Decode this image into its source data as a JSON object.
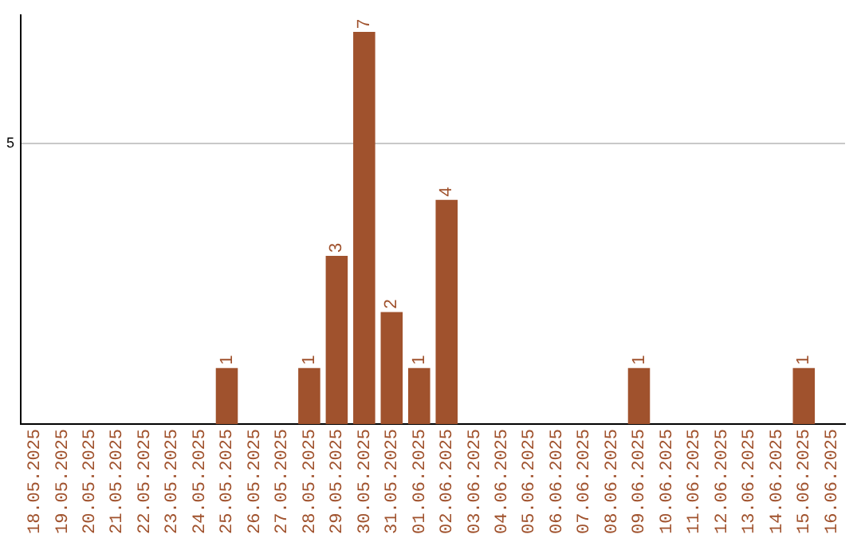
{
  "chart_data": {
    "type": "bar",
    "categories": [
      "18.05.2025",
      "19.05.2025",
      "20.05.2025",
      "21.05.2025",
      "22.05.2025",
      "23.05.2025",
      "24.05.2025",
      "25.05.2025",
      "26.05.2025",
      "27.05.2025",
      "28.05.2025",
      "29.05.2025",
      "30.05.2025",
      "31.05.2025",
      "01.06.2025",
      "02.06.2025",
      "03.06.2025",
      "04.06.2025",
      "05.06.2025",
      "06.06.2025",
      "07.06.2025",
      "08.06.2025",
      "09.06.2025",
      "10.06.2025",
      "11.06.2025",
      "12.06.2025",
      "13.06.2025",
      "14.06.2025",
      "15.06.2025",
      "16.06.2025"
    ],
    "values": [
      null,
      null,
      null,
      null,
      null,
      null,
      null,
      1,
      null,
      null,
      1,
      3,
      7,
      2,
      1,
      4,
      null,
      null,
      null,
      null,
      null,
      null,
      1,
      null,
      null,
      null,
      null,
      null,
      1,
      null
    ],
    "color": "#a0522d",
    "ylim": [
      0,
      7.3
    ],
    "yticks": [
      5
    ],
    "grid": "y",
    "data_labels": true,
    "legend": false
  }
}
